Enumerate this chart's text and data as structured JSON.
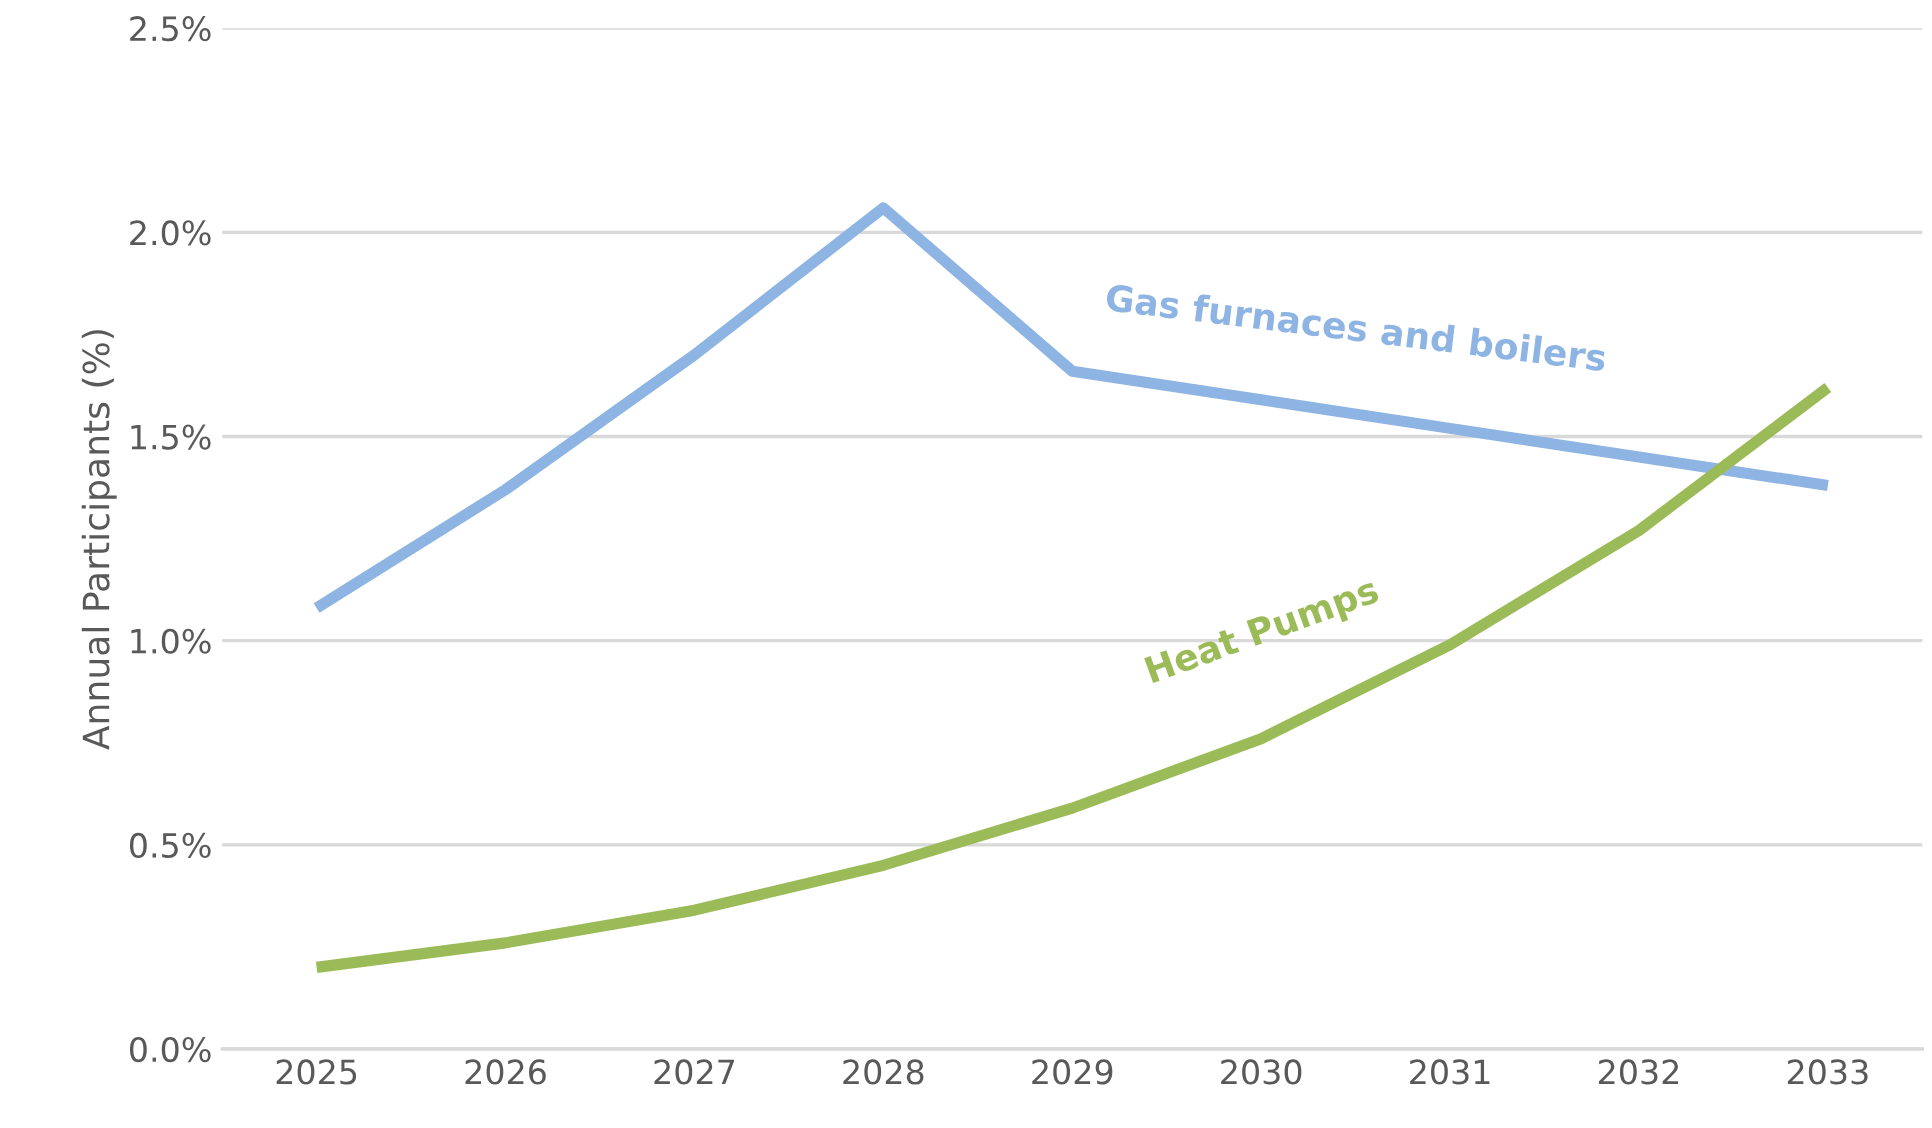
{
  "chart_data": {
    "type": "line",
    "ylabel": "Annual Participants (%)",
    "categories": [
      "2025",
      "2026",
      "2027",
      "2028",
      "2029",
      "2030",
      "2031",
      "2032",
      "2033"
    ],
    "series": [
      {
        "name": "Gas furnaces and boilers",
        "color": "#8db4e2",
        "values": [
          1.08,
          1.37,
          1.7,
          2.06,
          1.66,
          1.59,
          1.52,
          1.45,
          1.38
        ]
      },
      {
        "name": "Heat Pumps",
        "color": "#9bbb59",
        "values": [
          0.2,
          0.26,
          0.34,
          0.45,
          0.59,
          0.76,
          0.99,
          1.27,
          1.62
        ]
      }
    ],
    "ylim": [
      0,
      2.5
    ],
    "yticks": [
      {
        "value": 0,
        "label": "0.0%"
      },
      {
        "value": 0.5,
        "label": "0.5%"
      },
      {
        "value": 1.0,
        "label": "1.0%"
      },
      {
        "value": 1.5,
        "label": "1.5%"
      },
      {
        "value": 2.0,
        "label": "2.0%"
      },
      {
        "value": 2.5,
        "label": "2.5%"
      }
    ],
    "grid": "y",
    "legend": false,
    "marker": "none",
    "line_style": "solid"
  }
}
